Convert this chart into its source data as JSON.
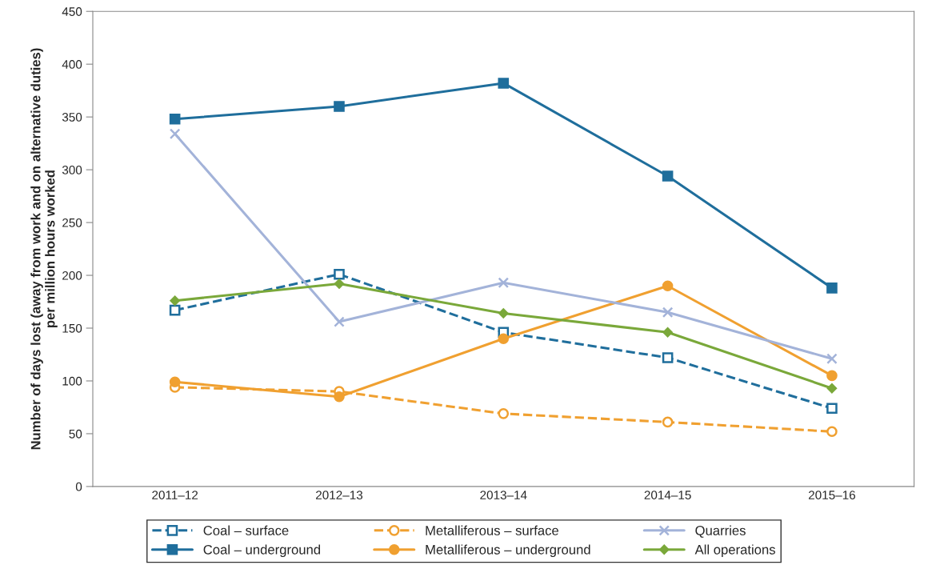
{
  "chart_data": {
    "type": "line",
    "ylabel": "Number of days lost (away from work and on alternative duties)\nper million hours worked",
    "categories": [
      "2011–12",
      "2012–13",
      "2013–14",
      "2014–15",
      "2015–16"
    ],
    "series": [
      {
        "name": "Coal – surface",
        "color": "#1f6e9c",
        "marker": "square",
        "line_style": "dashed",
        "values": [
          167,
          201,
          146,
          122,
          74
        ]
      },
      {
        "name": "Coal – underground",
        "color": "#1f6e9c",
        "marker": "square",
        "line_style": "solid",
        "values": [
          348,
          360,
          382,
          294,
          188
        ]
      },
      {
        "name": "Metalliferous – surface",
        "color": "#f0a030",
        "marker": "circle",
        "line_style": "dashed",
        "values": [
          94,
          90,
          69,
          61,
          52
        ]
      },
      {
        "name": "Metalliferous – underground",
        "color": "#f0a030",
        "marker": "circle",
        "line_style": "solid",
        "values": [
          99,
          85,
          140,
          190,
          105
        ]
      },
      {
        "name": "Quarries",
        "color": "#a3b3d9",
        "marker": "cross",
        "line_style": "solid",
        "values": [
          334,
          156,
          193,
          165,
          121
        ]
      },
      {
        "name": "All operations",
        "color": "#7aa83a",
        "marker": "diamond",
        "line_style": "solid",
        "values": [
          176,
          192,
          164,
          146,
          93
        ]
      }
    ],
    "ylim": [
      0,
      450
    ],
    "yticks": [
      0,
      50,
      100,
      150,
      200,
      250,
      300,
      350,
      400,
      450
    ],
    "grid": false,
    "legend": "bottom"
  }
}
